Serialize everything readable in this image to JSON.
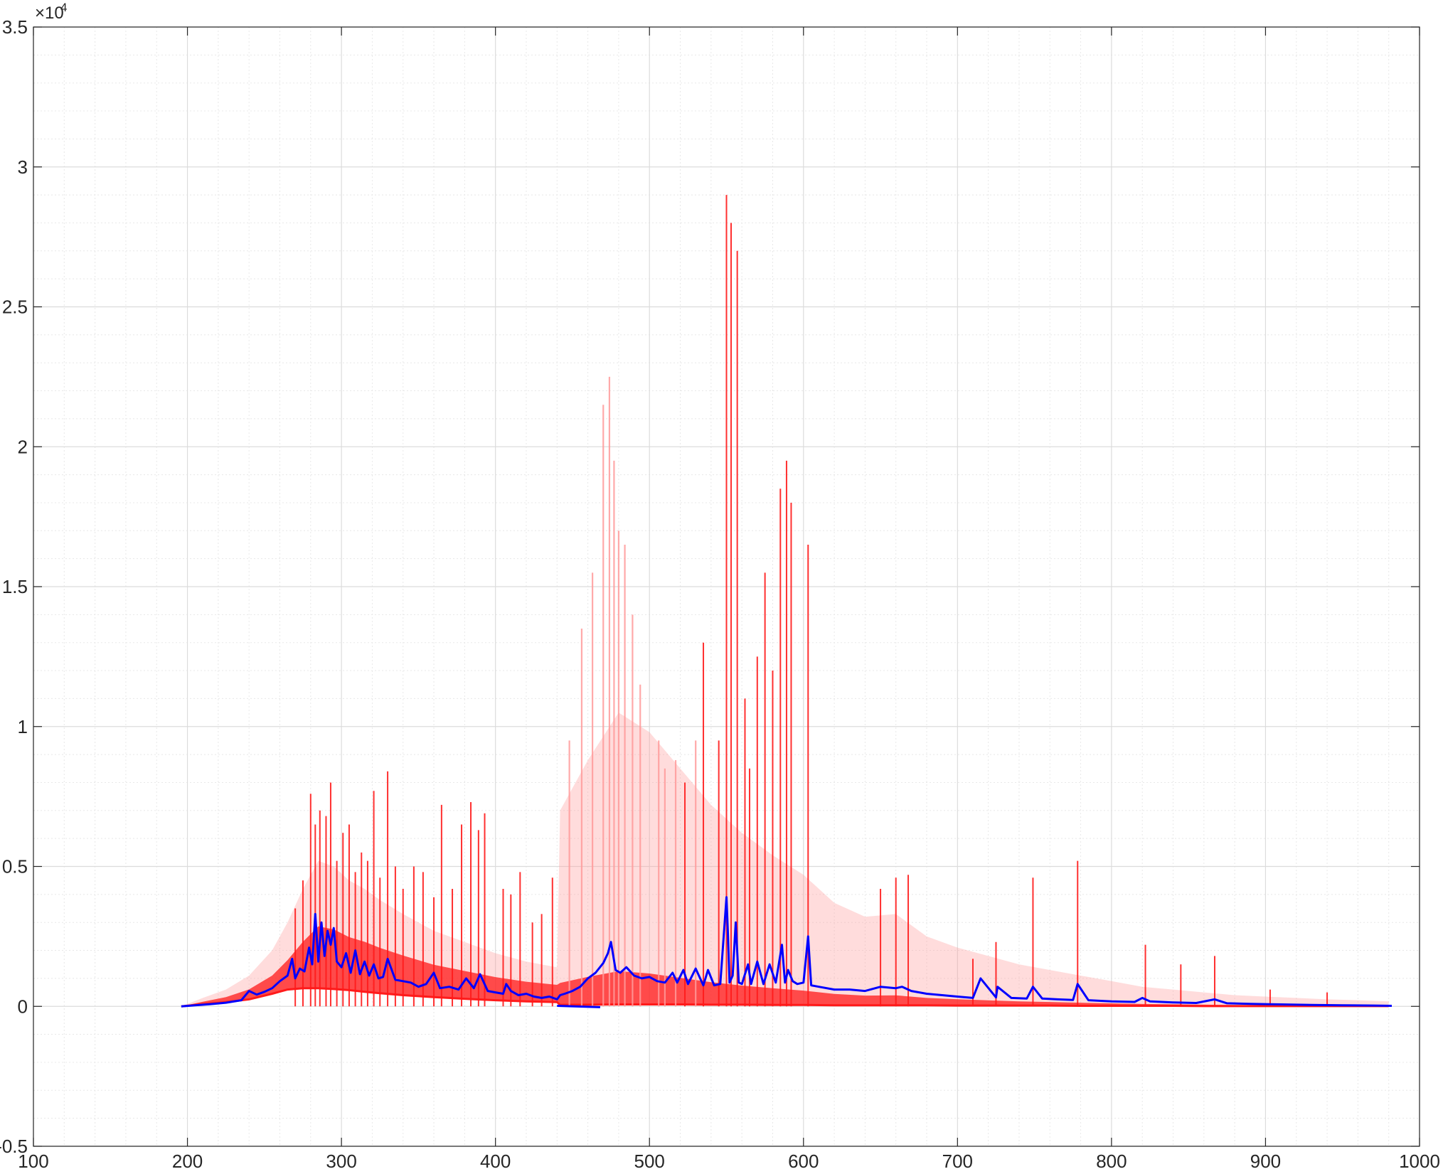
{
  "chart_data": {
    "type": "line",
    "title": "",
    "xlabel": "",
    "ylabel": "",
    "xlim": [
      100,
      1000
    ],
    "ylim": [
      -5000,
      35000
    ],
    "y_exponent_label": "×10",
    "y_exponent_power": "4",
    "grid": true,
    "minor_grid": true,
    "x_ticks": [
      100,
      200,
      300,
      400,
      500,
      600,
      700,
      800,
      900,
      1000
    ],
    "x_tick_labels": [
      "100",
      "200",
      "300",
      "400",
      "500",
      "600",
      "700",
      "800",
      "900",
      "1000"
    ],
    "y_ticks": [
      -5000,
      0,
      5000,
      10000,
      15000,
      20000,
      25000,
      30000,
      35000
    ],
    "y_tick_labels": [
      "-0.5",
      "0",
      "0.5",
      "1",
      "1.5",
      "2",
      "2.5",
      "3",
      "3.5"
    ],
    "colors": {
      "spectra": "#ff1a1a",
      "spectra_faint": "#ff9a9a",
      "mean": "#0000ff",
      "grid": "#dcdcdc",
      "axis": "#262626"
    },
    "series": [
      {
        "role": "red-envelope-upper",
        "x": [
          196,
          210,
          225,
          240,
          255,
          265,
          275,
          285,
          295,
          305,
          315,
          325,
          340,
          360,
          380,
          400,
          420,
          440,
          442,
          460,
          480,
          500,
          520,
          540,
          560,
          580,
          600,
          620,
          640,
          660,
          680,
          700,
          720,
          740,
          760,
          780,
          800,
          820,
          840,
          860,
          880,
          900,
          920,
          940,
          960,
          980
        ],
        "y": [
          0,
          300,
          600,
          1100,
          2000,
          3000,
          4200,
          5200,
          5000,
          4500,
          4200,
          3800,
          3300,
          2700,
          2300,
          1900,
          1600,
          1400,
          7000,
          8800,
          10500,
          9800,
          8500,
          7200,
          6200,
          5400,
          4700,
          3700,
          3200,
          3300,
          2500,
          2100,
          1800,
          1500,
          1300,
          1100,
          900,
          700,
          600,
          500,
          400,
          350,
          300,
          250,
          220,
          180
        ]
      },
      {
        "role": "red-envelope-lower",
        "x": [
          196,
          210,
          225,
          240,
          255,
          265,
          275,
          285,
          295,
          305,
          315,
          325,
          340,
          360,
          380,
          400,
          420,
          440,
          442,
          460,
          480,
          500,
          520,
          540,
          560,
          580,
          600,
          620,
          640,
          660,
          680,
          700,
          720,
          740,
          760,
          780,
          800,
          820,
          840,
          860,
          880,
          900,
          920,
          940,
          960,
          980
        ],
        "y": [
          0,
          80,
          150,
          250,
          450,
          600,
          650,
          650,
          620,
          580,
          520,
          470,
          400,
          330,
          270,
          220,
          180,
          150,
          50,
          60,
          70,
          70,
          70,
          60,
          60,
          50,
          50,
          40,
          40,
          40,
          40,
          30,
          30,
          30,
          30,
          20,
          20,
          20,
          20,
          10,
          10,
          10,
          10,
          10,
          10,
          10
        ]
      },
      {
        "role": "red-peaks",
        "x": [
          270,
          275,
          280,
          283,
          286,
          290,
          293,
          297,
          301,
          305,
          309,
          313,
          317,
          321,
          325,
          330,
          335,
          340,
          347,
          353,
          360,
          365,
          372,
          378,
          384,
          389,
          393,
          405,
          410,
          416,
          424,
          430,
          437,
          448,
          456,
          463,
          470,
          474,
          477,
          480,
          484,
          489,
          494,
          506,
          510,
          517,
          523,
          530,
          535,
          545,
          550,
          553,
          557,
          562,
          565,
          570,
          575,
          580,
          585,
          589,
          592,
          603,
          650,
          660,
          668,
          710,
          725,
          749,
          778,
          822,
          845,
          867,
          903,
          940
        ],
        "y": [
          3500,
          4500,
          7600,
          6500,
          7000,
          6800,
          8000,
          5200,
          6200,
          6500,
          4800,
          5500,
          5200,
          7700,
          4600,
          8400,
          5000,
          4200,
          5000,
          4800,
          3900,
          7200,
          4200,
          6500,
          7300,
          6300,
          6900,
          4200,
          4000,
          4800,
          3000,
          3300,
          4600,
          9500,
          13500,
          15500,
          21500,
          22500,
          19500,
          17000,
          16500,
          14000,
          11500,
          9500,
          8500,
          8800,
          8000,
          9500,
          13000,
          9500,
          29000,
          28000,
          27000,
          11000,
          8500,
          12500,
          15500,
          12000,
          18500,
          19500,
          18000,
          16500,
          4200,
          4600,
          4700,
          1700,
          2300,
          4600,
          5200,
          2200,
          1500,
          1800,
          600,
          500
        ]
      },
      {
        "role": "mean-spectrum",
        "name": "",
        "x": [
          196,
          205,
          215,
          225,
          235,
          240,
          245,
          250,
          255,
          260,
          265,
          268,
          270,
          273,
          276,
          279,
          281,
          283,
          285,
          287,
          289,
          291,
          293,
          295,
          297,
          300,
          303,
          306,
          309,
          312,
          315,
          318,
          321,
          324,
          327,
          330,
          335,
          340,
          345,
          350,
          355,
          360,
          364,
          370,
          376,
          381,
          386,
          390,
          395,
          400,
          405,
          407,
          410,
          415,
          420,
          425,
          430,
          435,
          440,
          442,
          445,
          450,
          455,
          460,
          465,
          470,
          473,
          475,
          478,
          481,
          485,
          490,
          495,
          500,
          505,
          510,
          515,
          518,
          522,
          525,
          530,
          535,
          538,
          542,
          546,
          550,
          551,
          552,
          554,
          556,
          558,
          560,
          564,
          566,
          570,
          574,
          578,
          582,
          586,
          588,
          590,
          593,
          596,
          600,
          603,
          605,
          610,
          620,
          630,
          640,
          650,
          660,
          664,
          670,
          680,
          690,
          700,
          710,
          715,
          725,
          726,
          735,
          745,
          749,
          755,
          765,
          775,
          778,
          785,
          800,
          815,
          820,
          825,
          840,
          855,
          867,
          875,
          890,
          910,
          930,
          950,
          970,
          982
        ],
        "y": [
          0,
          40,
          80,
          130,
          220,
          550,
          420,
          520,
          650,
          900,
          1100,
          1700,
          1000,
          1350,
          1250,
          2100,
          1500,
          3300,
          1600,
          3000,
          1800,
          2700,
          2200,
          2800,
          1600,
          1400,
          1900,
          1200,
          2000,
          1150,
          1600,
          1100,
          1500,
          1000,
          1050,
          1700,
          950,
          900,
          850,
          700,
          800,
          1200,
          650,
          700,
          600,
          1000,
          650,
          1150,
          550,
          500,
          450,
          800,
          550,
          400,
          450,
          350,
          300,
          350,
          250,
          400,
          450,
          550,
          700,
          1000,
          1200,
          1550,
          1900,
          2300,
          1300,
          1200,
          1400,
          1100,
          1000,
          1050,
          900,
          850,
          1200,
          850,
          1300,
          800,
          1350,
          750,
          1300,
          750,
          800,
          3900,
          2500,
          850,
          1100,
          3000,
          850,
          800,
          1500,
          800,
          1600,
          800,
          1500,
          850,
          2200,
          850,
          1300,
          900,
          800,
          850,
          2500,
          750,
          700,
          600,
          600,
          550,
          700,
          650,
          700,
          550,
          450,
          400,
          350,
          300,
          1000,
          320,
          700,
          300,
          280,
          700,
          280,
          250,
          230,
          800,
          220,
          180,
          160,
          300,
          180,
          140,
          120,
          250,
          110,
          90,
          70,
          50,
          40,
          30,
          20
        ]
      },
      {
        "role": "mean-detector-offset-segment",
        "x": [
          440,
          468
        ],
        "y": [
          20,
          -30
        ]
      }
    ]
  }
}
